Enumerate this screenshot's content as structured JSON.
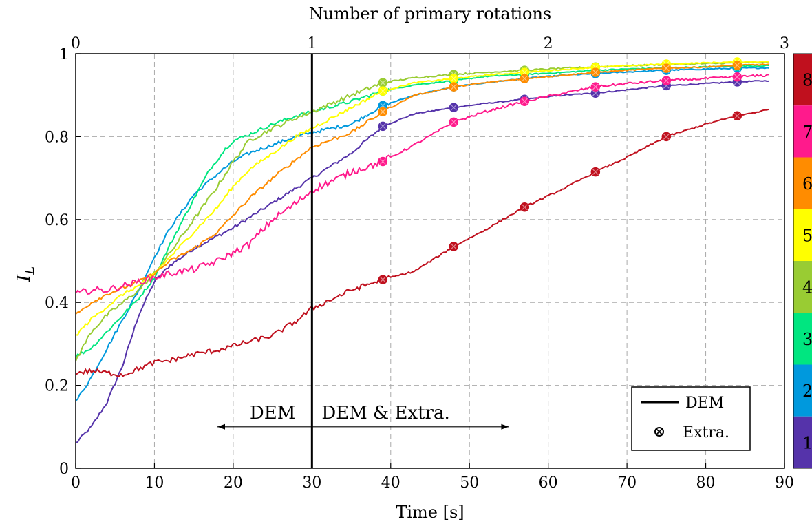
{
  "chart_data": {
    "type": "line",
    "xlabel": "Time [s]",
    "top_xlabel": "Number of primary rotations",
    "ylabel": "I",
    "ylabel_sub": "L",
    "xlim": [
      0,
      90
    ],
    "ylim": [
      0,
      1
    ],
    "xticks": [
      0,
      10,
      20,
      30,
      40,
      50,
      60,
      70,
      80,
      90
    ],
    "yticks": [
      0,
      0.2,
      0.4,
      0.6,
      0.8,
      1
    ],
    "ytick_labels": [
      "0",
      "0.2",
      "0.4",
      "0.6",
      "0.8",
      "1"
    ],
    "top_ticks": [
      {
        "x": 0,
        "label": "0"
      },
      {
        "x": 30,
        "label": "1"
      },
      {
        "x": 60,
        "label": "2"
      },
      {
        "x": 90,
        "label": "3"
      }
    ],
    "grid": true,
    "vline": {
      "x": 30
    },
    "annotations": {
      "left_label": "DEM",
      "right_label": "DEM & Extra.",
      "arrow_from": 18,
      "arrow_to": 55,
      "arrow_y": 0.1
    },
    "legend": {
      "position": "bottom-right",
      "entries": [
        {
          "label": "DEM",
          "style": "line"
        },
        {
          "label": "Extra.",
          "style": "circle-cross"
        }
      ]
    },
    "colorbar": {
      "labels": [
        "8",
        "7",
        "6",
        "5",
        "4",
        "3",
        "2",
        "1"
      ],
      "colors": [
        "#c0101e",
        "#ff1a8c",
        "#ff8c00",
        "#ffff00",
        "#99cc33",
        "#00e680",
        "#0099dd",
        "#5533aa"
      ]
    },
    "extra_x": [
      39,
      48,
      57,
      66,
      75,
      84
    ],
    "series": [
      {
        "color": "#5533aa",
        "noise": 0.004,
        "x": [
          0,
          2,
          4,
          6,
          8,
          10,
          12,
          15,
          18,
          20,
          25,
          30,
          35,
          39,
          43,
          48,
          52,
          57,
          62,
          66,
          70,
          75,
          80,
          84,
          88
        ],
        "y": [
          0.06,
          0.1,
          0.16,
          0.25,
          0.37,
          0.45,
          0.49,
          0.53,
          0.56,
          0.58,
          0.64,
          0.7,
          0.76,
          0.825,
          0.855,
          0.87,
          0.88,
          0.89,
          0.9,
          0.905,
          0.913,
          0.923,
          0.928,
          0.932,
          0.935
        ]
      },
      {
        "color": "#0099dd",
        "noise": 0.004,
        "x": [
          0,
          2,
          4,
          6,
          8,
          10,
          12,
          15,
          18,
          20,
          22,
          25,
          28,
          30,
          35,
          39,
          43,
          48,
          52,
          57,
          62,
          66,
          70,
          75,
          80,
          84,
          88
        ],
        "y": [
          0.16,
          0.22,
          0.29,
          0.36,
          0.43,
          0.51,
          0.58,
          0.66,
          0.71,
          0.74,
          0.76,
          0.78,
          0.8,
          0.81,
          0.83,
          0.875,
          0.9,
          0.92,
          0.93,
          0.94,
          0.948,
          0.952,
          0.956,
          0.96,
          0.963,
          0.965,
          0.966
        ]
      },
      {
        "color": "#00e680",
        "noise": 0.004,
        "x": [
          0,
          2,
          4,
          6,
          8,
          10,
          12,
          15,
          17,
          19,
          20,
          22,
          25,
          28,
          30,
          35,
          39,
          43,
          48,
          52,
          57,
          62,
          66,
          70,
          75,
          80,
          84,
          88
        ],
        "y": [
          0.27,
          0.29,
          0.33,
          0.37,
          0.41,
          0.46,
          0.54,
          0.65,
          0.72,
          0.77,
          0.79,
          0.805,
          0.83,
          0.85,
          0.86,
          0.885,
          0.91,
          0.925,
          0.935,
          0.945,
          0.95,
          0.955,
          0.96,
          0.963,
          0.966,
          0.968,
          0.97,
          0.971
        ]
      },
      {
        "color": "#99cc33",
        "noise": 0.005,
        "x": [
          0,
          2,
          4,
          6,
          8,
          10,
          12,
          15,
          18,
          20,
          22,
          25,
          28,
          30,
          35,
          39,
          43,
          48,
          52,
          57,
          62,
          66,
          70,
          75,
          80,
          84,
          88
        ],
        "y": [
          0.26,
          0.33,
          0.37,
          0.4,
          0.43,
          0.47,
          0.52,
          0.6,
          0.68,
          0.74,
          0.79,
          0.82,
          0.845,
          0.86,
          0.9,
          0.93,
          0.942,
          0.95,
          0.955,
          0.96,
          0.965,
          0.968,
          0.971,
          0.974,
          0.976,
          0.978,
          0.979
        ]
      },
      {
        "color": "#ffff00",
        "noise": 0.004,
        "x": [
          0,
          2,
          4,
          6,
          8,
          10,
          12,
          15,
          18,
          20,
          22,
          25,
          28,
          30,
          35,
          39,
          43,
          48,
          52,
          57,
          62,
          66,
          70,
          75,
          80,
          84,
          88
        ],
        "y": [
          0.32,
          0.36,
          0.39,
          0.42,
          0.44,
          0.47,
          0.51,
          0.57,
          0.63,
          0.68,
          0.72,
          0.76,
          0.8,
          0.82,
          0.87,
          0.91,
          0.93,
          0.94,
          0.948,
          0.955,
          0.962,
          0.967,
          0.971,
          0.975,
          0.978,
          0.98,
          0.981
        ]
      },
      {
        "color": "#ff8c00",
        "noise": 0.004,
        "x": [
          0,
          2,
          4,
          6,
          8,
          10,
          12,
          15,
          18,
          20,
          22,
          25,
          28,
          30,
          35,
          39,
          43,
          48,
          52,
          57,
          62,
          66,
          70,
          75,
          80,
          84,
          88
        ],
        "y": [
          0.37,
          0.4,
          0.42,
          0.435,
          0.45,
          0.47,
          0.5,
          0.53,
          0.57,
          0.61,
          0.65,
          0.7,
          0.745,
          0.775,
          0.81,
          0.86,
          0.9,
          0.92,
          0.93,
          0.94,
          0.948,
          0.955,
          0.96,
          0.965,
          0.968,
          0.972,
          0.974
        ]
      },
      {
        "color": "#ff1a8c",
        "noise": 0.008,
        "x": [
          0,
          2,
          4,
          6,
          8,
          10,
          12,
          15,
          18,
          20,
          22,
          25,
          28,
          30,
          35,
          39,
          43,
          48,
          52,
          57,
          62,
          66,
          70,
          75,
          80,
          84,
          88
        ],
        "y": [
          0.42,
          0.43,
          0.43,
          0.44,
          0.45,
          0.46,
          0.47,
          0.48,
          0.5,
          0.52,
          0.54,
          0.6,
          0.64,
          0.67,
          0.715,
          0.74,
          0.78,
          0.835,
          0.86,
          0.885,
          0.905,
          0.92,
          0.928,
          0.935,
          0.94,
          0.944,
          0.948
        ]
      },
      {
        "color": "#c0101e",
        "noise": 0.006,
        "x": [
          0,
          2,
          4,
          6,
          8,
          10,
          12,
          15,
          18,
          20,
          22,
          25,
          28,
          30,
          35,
          39,
          43,
          48,
          52,
          57,
          62,
          66,
          70,
          75,
          80,
          84,
          88
        ],
        "y": [
          0.23,
          0.235,
          0.23,
          0.225,
          0.24,
          0.255,
          0.26,
          0.275,
          0.285,
          0.295,
          0.305,
          0.32,
          0.355,
          0.385,
          0.43,
          0.455,
          0.475,
          0.535,
          0.575,
          0.63,
          0.675,
          0.715,
          0.75,
          0.8,
          0.83,
          0.85,
          0.865
        ]
      }
    ]
  }
}
